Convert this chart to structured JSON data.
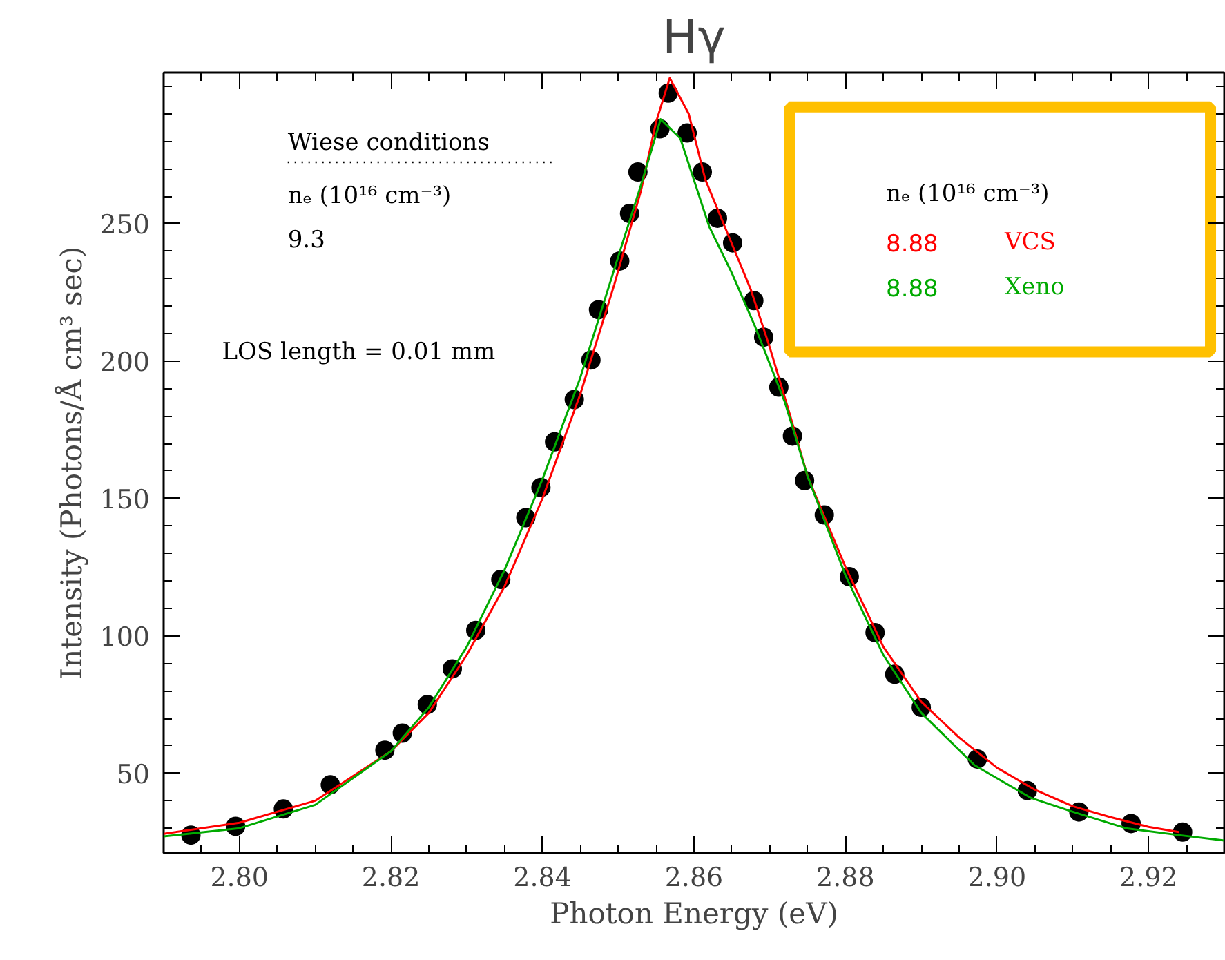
{
  "chart_data": {
    "type": "line",
    "title": "Hγ",
    "xlabel": "Photon Energy (eV)",
    "ylabel": "Intensity (Photons/Å cm³ sec)",
    "xlim": [
      2.79,
      2.93
    ],
    "ylim": [
      21,
      305
    ],
    "xticks": [
      {
        "value": 2.795,
        "label": null
      },
      {
        "value": 2.8,
        "label": "2.80"
      },
      {
        "value": 2.805,
        "label": null
      },
      {
        "value": 2.81,
        "label": null
      },
      {
        "value": 2.815,
        "label": null
      },
      2.82,
      {
        "value": 2.825,
        "label": null
      },
      {
        "value": 2.83,
        "label": null
      },
      {
        "value": 2.835,
        "label": null
      },
      2.84,
      {
        "value": 2.845,
        "label": null
      },
      {
        "value": 2.85,
        "label": null
      },
      {
        "value": 2.855,
        "label": null
      },
      2.86,
      {
        "value": 2.865,
        "label": null
      },
      {
        "value": 2.87,
        "label": null
      },
      {
        "value": 2.875,
        "label": null
      },
      2.88,
      {
        "value": 2.885,
        "label": null
      },
      {
        "value": 2.89,
        "label": null
      },
      {
        "value": 2.895,
        "label": null
      },
      {
        "value": 2.9,
        "label": "2.90"
      },
      {
        "value": 2.905,
        "label": null
      },
      {
        "value": 2.91,
        "label": null
      },
      {
        "value": 2.915,
        "label": null
      },
      2.92,
      {
        "value": 2.925,
        "label": null
      }
    ],
    "yticks": [
      {
        "value": 30,
        "label": null
      },
      {
        "value": 40,
        "label": null
      },
      50,
      {
        "value": 60,
        "label": null
      },
      {
        "value": 70,
        "label": null
      },
      {
        "value": 80,
        "label": null
      },
      {
        "value": 90,
        "label": null
      },
      100,
      {
        "value": 110,
        "label": null
      },
      {
        "value": 120,
        "label": null
      },
      {
        "value": 130,
        "label": null
      },
      {
        "value": 140,
        "label": null
      },
      150,
      {
        "value": 160,
        "label": null
      },
      {
        "value": 170,
        "label": null
      },
      {
        "value": 180,
        "label": null
      },
      {
        "value": 190,
        "label": null
      },
      200,
      {
        "value": 210,
        "label": null
      },
      {
        "value": 220,
        "label": null
      },
      {
        "value": 230,
        "label": null
      },
      {
        "value": 240,
        "label": null
      },
      250,
      {
        "value": 260,
        "label": null
      },
      {
        "value": 270,
        "label": null
      },
      {
        "value": 280,
        "label": null
      },
      {
        "value": 290,
        "label": null
      },
      {
        "value": 300,
        "label": null
      }
    ],
    "grid": false,
    "legend_title": "nₑ (10¹⁶ cm⁻³)",
    "annotations": [
      "Wiese conditions",
      "nₑ (10¹⁶ cm⁻³)",
      "9.3",
      "LOS length = 0.01 mm"
    ],
    "series": [
      {
        "type": "scatter",
        "marker": "circle",
        "color": "#000000",
        "x": [
          2.7936,
          2.7995,
          2.8058,
          2.812,
          2.8192,
          2.8215,
          2.8248,
          2.8281,
          2.8312,
          2.8345,
          2.8378,
          2.8398,
          2.8416,
          2.8442,
          2.8464,
          2.8474,
          2.8502,
          2.8515,
          2.8526,
          2.8555,
          2.8566,
          2.8591,
          2.8611,
          2.8631,
          2.8651,
          2.8679,
          2.8692,
          2.8712,
          2.873,
          2.8746,
          2.8772,
          2.8805,
          2.8839,
          2.8865,
          2.89,
          2.8974,
          2.904,
          2.9108,
          2.9177,
          2.9245
        ],
        "values": [
          27.5,
          30.7,
          37,
          45.8,
          58.4,
          64.6,
          75,
          88,
          102,
          120.5,
          143,
          154,
          170.6,
          186,
          200.4,
          218.7,
          236.4,
          253.7,
          268.8,
          284.5,
          297.5,
          283,
          268.8,
          252,
          243,
          222,
          208.7,
          190.5,
          172.7,
          156.5,
          144,
          121.5,
          101.2,
          86,
          74,
          55.2,
          43.7,
          35.9,
          31.7,
          28.6
        ]
      },
      {
        "name": "8.88 VCS",
        "color": "#ff0000",
        "x": [
          2.79,
          2.8,
          2.81,
          2.82,
          2.825,
          2.83,
          2.835,
          2.84,
          2.845,
          2.8495,
          2.853,
          2.855,
          2.8568,
          2.8593,
          2.8615,
          2.8645,
          2.8675,
          2.87,
          2.8725,
          2.875,
          2.88,
          2.885,
          2.89,
          2.895,
          2.9,
          2.905,
          2.91,
          2.915,
          2.92,
          2.924
        ],
        "values": [
          28,
          32,
          40,
          58,
          72,
          93,
          118,
          150,
          188,
          228,
          262,
          287,
          303,
          290,
          266,
          246,
          226,
          205,
          182,
          158,
          125,
          96,
          76,
          63,
          52,
          44,
          38,
          34,
          30.5,
          28.6
        ]
      },
      {
        "name": "8.88 Xeno",
        "color": "#00aa00",
        "x": [
          2.79,
          2.8,
          2.81,
          2.82,
          2.825,
          2.83,
          2.835,
          2.84,
          2.845,
          2.85,
          2.853,
          2.8556,
          2.8582,
          2.862,
          2.865,
          2.868,
          2.872,
          2.875,
          2.88,
          2.885,
          2.89,
          2.897,
          2.9045,
          2.91,
          2.917,
          2.924,
          2.93
        ],
        "values": [
          27,
          30,
          38.5,
          58,
          74,
          96,
          124,
          157,
          194,
          238,
          264,
          288,
          281,
          249,
          232,
          213,
          185,
          158,
          122,
          93,
          72,
          53,
          41,
          36,
          30,
          27.5,
          25.5
        ]
      }
    ]
  }
}
